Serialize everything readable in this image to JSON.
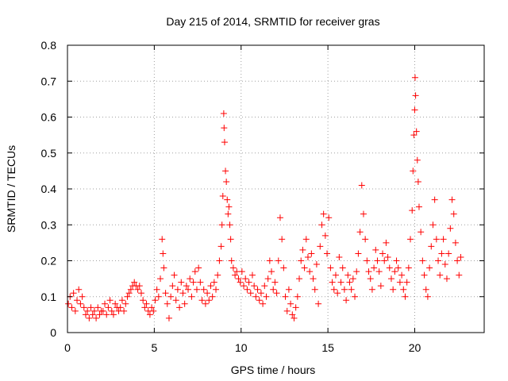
{
  "chart_data": {
    "type": "scatter",
    "title": "Day 215 of 2014, SRMTID for receiver gras",
    "xlabel": "GPS time / hours",
    "ylabel": "SRMTID / TECUs",
    "xlim": [
      0,
      24
    ],
    "ylim": [
      0,
      0.8
    ],
    "grid": true,
    "marker": "+",
    "color": "#ff0000",
    "xticks": [
      {
        "value": 0,
        "label": "0"
      },
      {
        "value": 5,
        "label": "5"
      },
      {
        "value": 10,
        "label": "10"
      },
      {
        "value": 15,
        "label": "15"
      },
      {
        "value": 20,
        "label": "20"
      }
    ],
    "yticks": [
      {
        "value": 0,
        "label": "0"
      },
      {
        "value": 0.1,
        "label": "0.1"
      },
      {
        "value": 0.2,
        "label": "0.2"
      },
      {
        "value": 0.3,
        "label": "0.3"
      },
      {
        "value": 0.4,
        "label": "0.4"
      },
      {
        "value": 0.5,
        "label": "0.5"
      },
      {
        "value": 0.6,
        "label": "0.6"
      },
      {
        "value": 0.7,
        "label": "0.7"
      },
      {
        "value": 0.8,
        "label": "0.8"
      }
    ],
    "series": [
      {
        "name": "SRMTID",
        "points": [
          [
            0.05,
            0.08
          ],
          [
            0.15,
            0.1
          ],
          [
            0.25,
            0.07
          ],
          [
            0.35,
            0.11
          ],
          [
            0.45,
            0.06
          ],
          [
            0.55,
            0.09
          ],
          [
            0.65,
            0.12
          ],
          [
            0.75,
            0.08
          ],
          [
            0.85,
            0.1
          ],
          [
            0.95,
            0.07
          ],
          [
            1.05,
            0.05
          ],
          [
            1.15,
            0.06
          ],
          [
            1.25,
            0.04
          ],
          [
            1.35,
            0.07
          ],
          [
            1.45,
            0.05
          ],
          [
            1.55,
            0.06
          ],
          [
            1.65,
            0.04
          ],
          [
            1.75,
            0.07
          ],
          [
            1.85,
            0.05
          ],
          [
            1.95,
            0.06
          ],
          [
            2.05,
            0.06
          ],
          [
            2.15,
            0.08
          ],
          [
            2.25,
            0.05
          ],
          [
            2.35,
            0.07
          ],
          [
            2.45,
            0.09
          ],
          [
            2.55,
            0.06
          ],
          [
            2.65,
            0.05
          ],
          [
            2.75,
            0.08
          ],
          [
            2.85,
            0.07
          ],
          [
            2.95,
            0.06
          ],
          [
            3.05,
            0.07
          ],
          [
            3.15,
            0.09
          ],
          [
            3.25,
            0.06
          ],
          [
            3.35,
            0.08
          ],
          [
            3.45,
            0.1
          ],
          [
            3.55,
            0.11
          ],
          [
            3.65,
            0.12
          ],
          [
            3.75,
            0.13
          ],
          [
            3.85,
            0.14
          ],
          [
            3.95,
            0.13
          ],
          [
            4.05,
            0.12
          ],
          [
            4.15,
            0.13
          ],
          [
            4.25,
            0.11
          ],
          [
            4.35,
            0.09
          ],
          [
            4.45,
            0.07
          ],
          [
            4.55,
            0.08
          ],
          [
            4.65,
            0.06
          ],
          [
            4.75,
            0.05
          ],
          [
            4.85,
            0.07
          ],
          [
            4.95,
            0.06
          ],
          [
            5.05,
            0.09
          ],
          [
            5.15,
            0.12
          ],
          [
            5.25,
            0.1
          ],
          [
            5.35,
            0.15
          ],
          [
            5.45,
            0.26
          ],
          [
            5.5,
            0.22
          ],
          [
            5.55,
            0.18
          ],
          [
            5.65,
            0.11
          ],
          [
            5.75,
            0.08
          ],
          [
            5.85,
            0.04
          ],
          [
            5.95,
            0.1
          ],
          [
            6.05,
            0.13
          ],
          [
            6.15,
            0.16
          ],
          [
            6.25,
            0.09
          ],
          [
            6.35,
            0.12
          ],
          [
            6.45,
            0.07
          ],
          [
            6.55,
            0.14
          ],
          [
            6.65,
            0.11
          ],
          [
            6.75,
            0.08
          ],
          [
            6.85,
            0.13
          ],
          [
            6.95,
            0.12
          ],
          [
            7.05,
            0.15
          ],
          [
            7.15,
            0.1
          ],
          [
            7.25,
            0.14
          ],
          [
            7.35,
            0.17
          ],
          [
            7.45,
            0.12
          ],
          [
            7.55,
            0.18
          ],
          [
            7.65,
            0.14
          ],
          [
            7.75,
            0.09
          ],
          [
            7.85,
            0.12
          ],
          [
            7.95,
            0.08
          ],
          [
            8.05,
            0.11
          ],
          [
            8.15,
            0.09
          ],
          [
            8.25,
            0.13
          ],
          [
            8.35,
            0.1
          ],
          [
            8.45,
            0.14
          ],
          [
            8.55,
            0.12
          ],
          [
            8.65,
            0.16
          ],
          [
            8.75,
            0.2
          ],
          [
            8.85,
            0.24
          ],
          [
            8.9,
            0.3
          ],
          [
            8.95,
            0.38
          ],
          [
            9.0,
            0.61
          ],
          [
            9.02,
            0.57
          ],
          [
            9.05,
            0.53
          ],
          [
            9.1,
            0.45
          ],
          [
            9.15,
            0.42
          ],
          [
            9.2,
            0.37
          ],
          [
            9.25,
            0.33
          ],
          [
            9.3,
            0.35
          ],
          [
            9.35,
            0.3
          ],
          [
            9.4,
            0.26
          ],
          [
            9.45,
            0.2
          ],
          [
            9.55,
            0.18
          ],
          [
            9.65,
            0.16
          ],
          [
            9.75,
            0.17
          ],
          [
            9.85,
            0.15
          ],
          [
            9.95,
            0.14
          ],
          [
            10.05,
            0.17
          ],
          [
            10.15,
            0.13
          ],
          [
            10.25,
            0.15
          ],
          [
            10.35,
            0.12
          ],
          [
            10.45,
            0.14
          ],
          [
            10.55,
            0.11
          ],
          [
            10.65,
            0.16
          ],
          [
            10.75,
            0.13
          ],
          [
            10.85,
            0.1
          ],
          [
            10.95,
            0.12
          ],
          [
            11.05,
            0.09
          ],
          [
            11.15,
            0.11
          ],
          [
            11.25,
            0.08
          ],
          [
            11.35,
            0.13
          ],
          [
            11.45,
            0.1
          ],
          [
            11.55,
            0.15
          ],
          [
            11.65,
            0.2
          ],
          [
            11.75,
            0.17
          ],
          [
            11.85,
            0.12
          ],
          [
            11.95,
            0.14
          ],
          [
            12.05,
            0.11
          ],
          [
            12.15,
            0.2
          ],
          [
            12.25,
            0.32
          ],
          [
            12.35,
            0.26
          ],
          [
            12.45,
            0.18
          ],
          [
            12.55,
            0.1
          ],
          [
            12.65,
            0.06
          ],
          [
            12.75,
            0.12
          ],
          [
            12.85,
            0.08
          ],
          [
            12.95,
            0.05
          ],
          [
            13.05,
            0.04
          ],
          [
            13.15,
            0.07
          ],
          [
            13.25,
            0.1
          ],
          [
            13.35,
            0.15
          ],
          [
            13.45,
            0.2
          ],
          [
            13.55,
            0.23
          ],
          [
            13.65,
            0.18
          ],
          [
            13.75,
            0.26
          ],
          [
            13.85,
            0.21
          ],
          [
            13.95,
            0.17
          ],
          [
            14.05,
            0.22
          ],
          [
            14.15,
            0.15
          ],
          [
            14.25,
            0.12
          ],
          [
            14.35,
            0.19
          ],
          [
            14.45,
            0.08
          ],
          [
            14.55,
            0.24
          ],
          [
            14.65,
            0.3
          ],
          [
            14.75,
            0.33
          ],
          [
            14.85,
            0.27
          ],
          [
            14.95,
            0.22
          ],
          [
            15.05,
            0.32
          ],
          [
            15.15,
            0.18
          ],
          [
            15.25,
            0.14
          ],
          [
            15.35,
            0.12
          ],
          [
            15.45,
            0.16
          ],
          [
            15.55,
            0.11
          ],
          [
            15.65,
            0.21
          ],
          [
            15.75,
            0.14
          ],
          [
            15.85,
            0.18
          ],
          [
            15.95,
            0.12
          ],
          [
            16.05,
            0.09
          ],
          [
            16.15,
            0.16
          ],
          [
            16.25,
            0.14
          ],
          [
            16.35,
            0.12
          ],
          [
            16.45,
            0.15
          ],
          [
            16.55,
            0.1
          ],
          [
            16.65,
            0.17
          ],
          [
            16.75,
            0.22
          ],
          [
            16.85,
            0.28
          ],
          [
            16.95,
            0.41
          ],
          [
            17.05,
            0.33
          ],
          [
            17.15,
            0.26
          ],
          [
            17.25,
            0.2
          ],
          [
            17.35,
            0.17
          ],
          [
            17.45,
            0.15
          ],
          [
            17.55,
            0.12
          ],
          [
            17.65,
            0.18
          ],
          [
            17.75,
            0.23
          ],
          [
            17.85,
            0.2
          ],
          [
            17.95,
            0.17
          ],
          [
            18.05,
            0.13
          ],
          [
            18.15,
            0.22
          ],
          [
            18.25,
            0.2
          ],
          [
            18.35,
            0.25
          ],
          [
            18.45,
            0.21
          ],
          [
            18.55,
            0.18
          ],
          [
            18.65,
            0.15
          ],
          [
            18.75,
            0.12
          ],
          [
            18.85,
            0.17
          ],
          [
            18.95,
            0.2
          ],
          [
            19.05,
            0.18
          ],
          [
            19.15,
            0.14
          ],
          [
            19.25,
            0.16
          ],
          [
            19.35,
            0.12
          ],
          [
            19.45,
            0.1
          ],
          [
            19.55,
            0.14
          ],
          [
            19.65,
            0.18
          ],
          [
            19.75,
            0.26
          ],
          [
            19.85,
            0.34
          ],
          [
            19.9,
            0.45
          ],
          [
            19.95,
            0.55
          ],
          [
            20.0,
            0.62
          ],
          [
            20.02,
            0.71
          ],
          [
            20.05,
            0.66
          ],
          [
            20.1,
            0.56
          ],
          [
            20.15,
            0.48
          ],
          [
            20.2,
            0.42
          ],
          [
            20.25,
            0.35
          ],
          [
            20.35,
            0.28
          ],
          [
            20.45,
            0.2
          ],
          [
            20.55,
            0.16
          ],
          [
            20.65,
            0.12
          ],
          [
            20.75,
            0.1
          ],
          [
            20.85,
            0.18
          ],
          [
            20.95,
            0.24
          ],
          [
            21.05,
            0.3
          ],
          [
            21.15,
            0.37
          ],
          [
            21.25,
            0.26
          ],
          [
            21.35,
            0.2
          ],
          [
            21.45,
            0.16
          ],
          [
            21.55,
            0.22
          ],
          [
            21.65,
            0.26
          ],
          [
            21.75,
            0.19
          ],
          [
            21.85,
            0.15
          ],
          [
            21.95,
            0.22
          ],
          [
            22.05,
            0.29
          ],
          [
            22.15,
            0.37
          ],
          [
            22.25,
            0.33
          ],
          [
            22.35,
            0.25
          ],
          [
            22.45,
            0.2
          ],
          [
            22.55,
            0.16
          ],
          [
            22.65,
            0.21
          ]
        ]
      }
    ]
  }
}
